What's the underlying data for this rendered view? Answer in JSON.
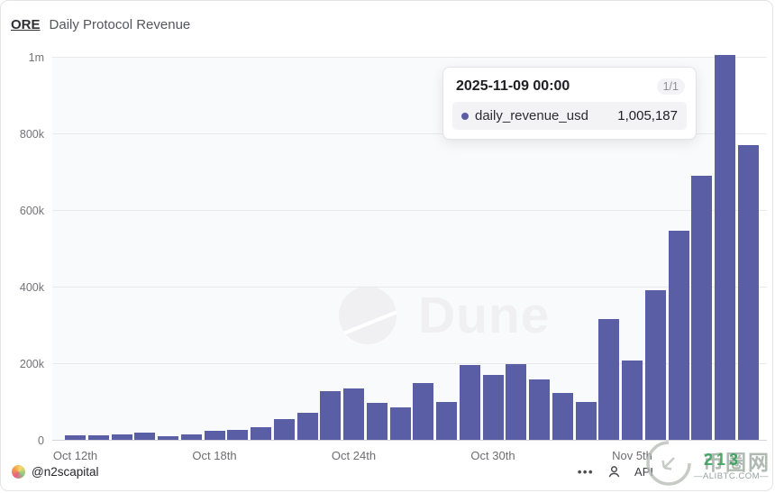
{
  "header": {
    "asset_link": "ORE",
    "title": "Daily Protocol Revenue"
  },
  "tooltip": {
    "timestamp": "2025-11-09 00:00",
    "pagination": "1/1",
    "series_label": "daily_revenue_usd",
    "value_label": "1,005,187",
    "dot_color": "#5a5fa5"
  },
  "watermarks": {
    "dune_text": "Dune",
    "site_text": "币圈网",
    "site_green_digits": "213",
    "site_subtext": "—ALIBTC.COM—"
  },
  "footer": {
    "author": "@n2scapital",
    "menu_label": "•••",
    "api_label": "API"
  },
  "chart_data": {
    "type": "bar",
    "title": "ORE Daily Protocol Revenue",
    "series_name": "daily_revenue_usd",
    "bar_color": "#5a5fa5",
    "grid": true,
    "ylim": [
      0,
      1000000
    ],
    "highlighted_index": 28,
    "x": [
      "2025-10-12",
      "2025-10-13",
      "2025-10-14",
      "2025-10-15",
      "2025-10-16",
      "2025-10-17",
      "2025-10-18",
      "2025-10-19",
      "2025-10-20",
      "2025-10-21",
      "2025-10-22",
      "2025-10-23",
      "2025-10-24",
      "2025-10-25",
      "2025-10-26",
      "2025-10-27",
      "2025-10-28",
      "2025-10-29",
      "2025-10-30",
      "2025-10-31",
      "2025-11-01",
      "2025-11-02",
      "2025-11-03",
      "2025-11-04",
      "2025-11-05",
      "2025-11-06",
      "2025-11-07",
      "2025-11-08",
      "2025-11-09",
      "2025-11-10"
    ],
    "values": [
      11000,
      13000,
      15000,
      19000,
      10000,
      14000,
      23000,
      27000,
      33000,
      55000,
      70000,
      127000,
      135000,
      97000,
      85000,
      148000,
      100000,
      195000,
      170000,
      197000,
      158000,
      122000,
      100000,
      315000,
      207000,
      390000,
      545000,
      690000,
      1005187,
      770000
    ],
    "yticks": [
      {
        "label": "0",
        "value": 0
      },
      {
        "label": "200k",
        "value": 200000
      },
      {
        "label": "400k",
        "value": 400000
      },
      {
        "label": "600k",
        "value": 600000
      },
      {
        "label": "800k",
        "value": 800000
      },
      {
        "label": "1m",
        "value": 1000000
      }
    ],
    "xticks": [
      {
        "label": "Oct 12th",
        "day": 0
      },
      {
        "label": "Oct 18th",
        "day": 6
      },
      {
        "label": "Oct 24th",
        "day": 12
      },
      {
        "label": "Oct 30th",
        "day": 18
      },
      {
        "label": "Nov 5th",
        "day": 24
      }
    ]
  }
}
